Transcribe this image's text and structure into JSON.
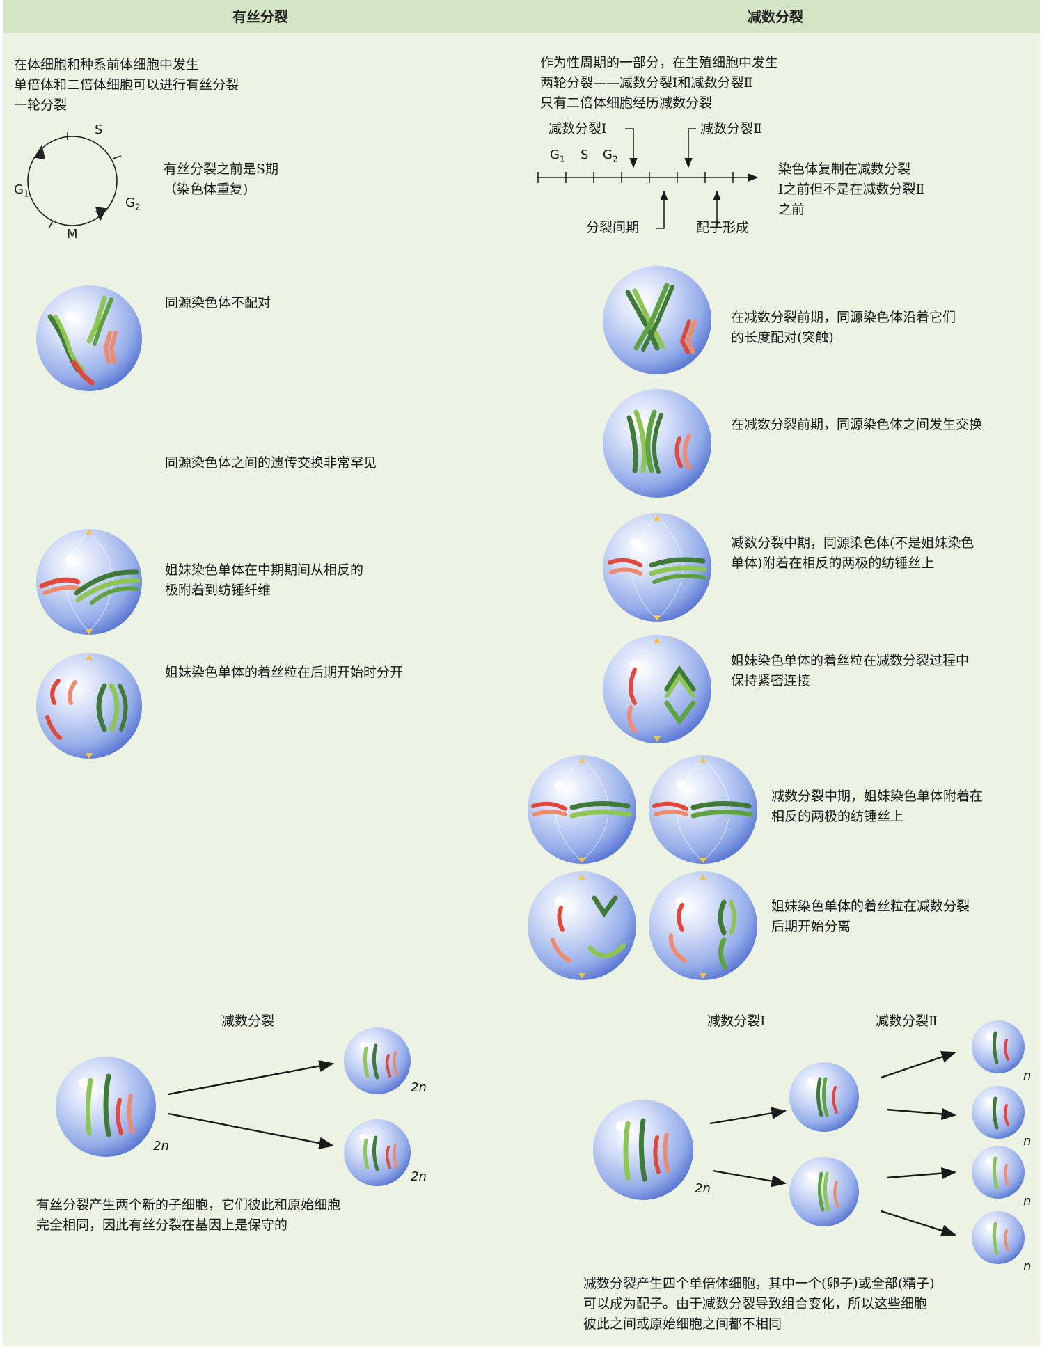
{
  "headers": {
    "mitosis": "有丝分裂",
    "meiosis": "减数分裂"
  },
  "mitosis": {
    "intro": [
      "在体细胞和种系前体细胞中发生",
      "单倍体和二倍体细胞可以进行有丝分裂",
      "一轮分裂"
    ],
    "cycle_labels": {
      "s": "S",
      "g1": "G",
      "g1_sub": "1",
      "g2": "G",
      "g2_sub": "2",
      "m": "M"
    },
    "s_phase_note": [
      "有丝分裂之前是S期",
      "（染色体重复)"
    ],
    "no_pairing": "同源染色体不配对",
    "rare_exchange": "同源染色体之间的遗传交换非常罕见",
    "metaphase": [
      "姐妹染色单体在中期期间从相反的",
      "极附着到纺锤纤维"
    ],
    "anaphase": "姐妹染色单体的着丝粒在后期开始时分开",
    "summary_label": "减数分裂",
    "ploidy_2n": "2n",
    "conclusion": [
      "有丝分裂产生两个新的子细胞，它们彼此和原始细胞",
      "完全相同，因此有丝分裂在基因上是保守的"
    ]
  },
  "meiosis": {
    "intro": [
      "作为性周期的一部分，在生殖细胞中发生",
      "两轮分裂——减数分裂Ⅰ和减数分裂Ⅱ",
      "只有二倍体细胞经历减数分裂"
    ],
    "timeline": {
      "meiosis1": "减数分裂Ⅰ",
      "meiosis2": "减数分裂Ⅱ",
      "g1": "G",
      "g1_sub": "1",
      "s": "S",
      "g2": "G",
      "g2_sub": "2",
      "interphase": "分裂间期",
      "gamete": "配子形成"
    },
    "replication_note": [
      "染色体复制在减数分裂",
      "Ⅰ之前但不是在减数分裂Ⅱ",
      "之前"
    ],
    "synapsis": [
      "在减数分裂前期，同源染色体沿着它们",
      "的长度配对(突触)"
    ],
    "crossing_over": "在减数分裂前期，同源染色体之间发生交换",
    "metaphase1": [
      "减数分裂中期，同源染色体(不是姐妹染色",
      "单体)附着在相反的两极的纺锤丝上"
    ],
    "anaphase1": [
      "姐妹染色单体的着丝粒在减数分裂过程中",
      "保持紧密连接"
    ],
    "metaphase2": [
      "减数分裂中期，姐妹染色单体附着在",
      "相反的两极的纺锤丝上"
    ],
    "anaphase2": [
      "姐妹染色单体的着丝粒在减数分裂",
      "后期开始分离"
    ],
    "summary_label1": "减数分裂Ⅰ",
    "summary_label2": "减数分裂Ⅱ",
    "ploidy_2n": "2n",
    "ploidy_n": "n",
    "conclusion": [
      "减数分裂产生四个单倍体细胞，其中一个(卵子)或全部(精子)",
      "可以成为配子。由于减数分裂导致组合变化，所以这些细胞",
      "彼此之间或原始细胞之间都不相同"
    ]
  },
  "colors": {
    "header_bg": "#d3e4c4",
    "panel_bg": "#edf3e3",
    "cell": "#7f9ce6",
    "chrom_green_dark": "#3f7a36",
    "chrom_green_light": "#8ec653",
    "chrom_red": "#e0493a",
    "chrom_salmon": "#f08a6c"
  }
}
